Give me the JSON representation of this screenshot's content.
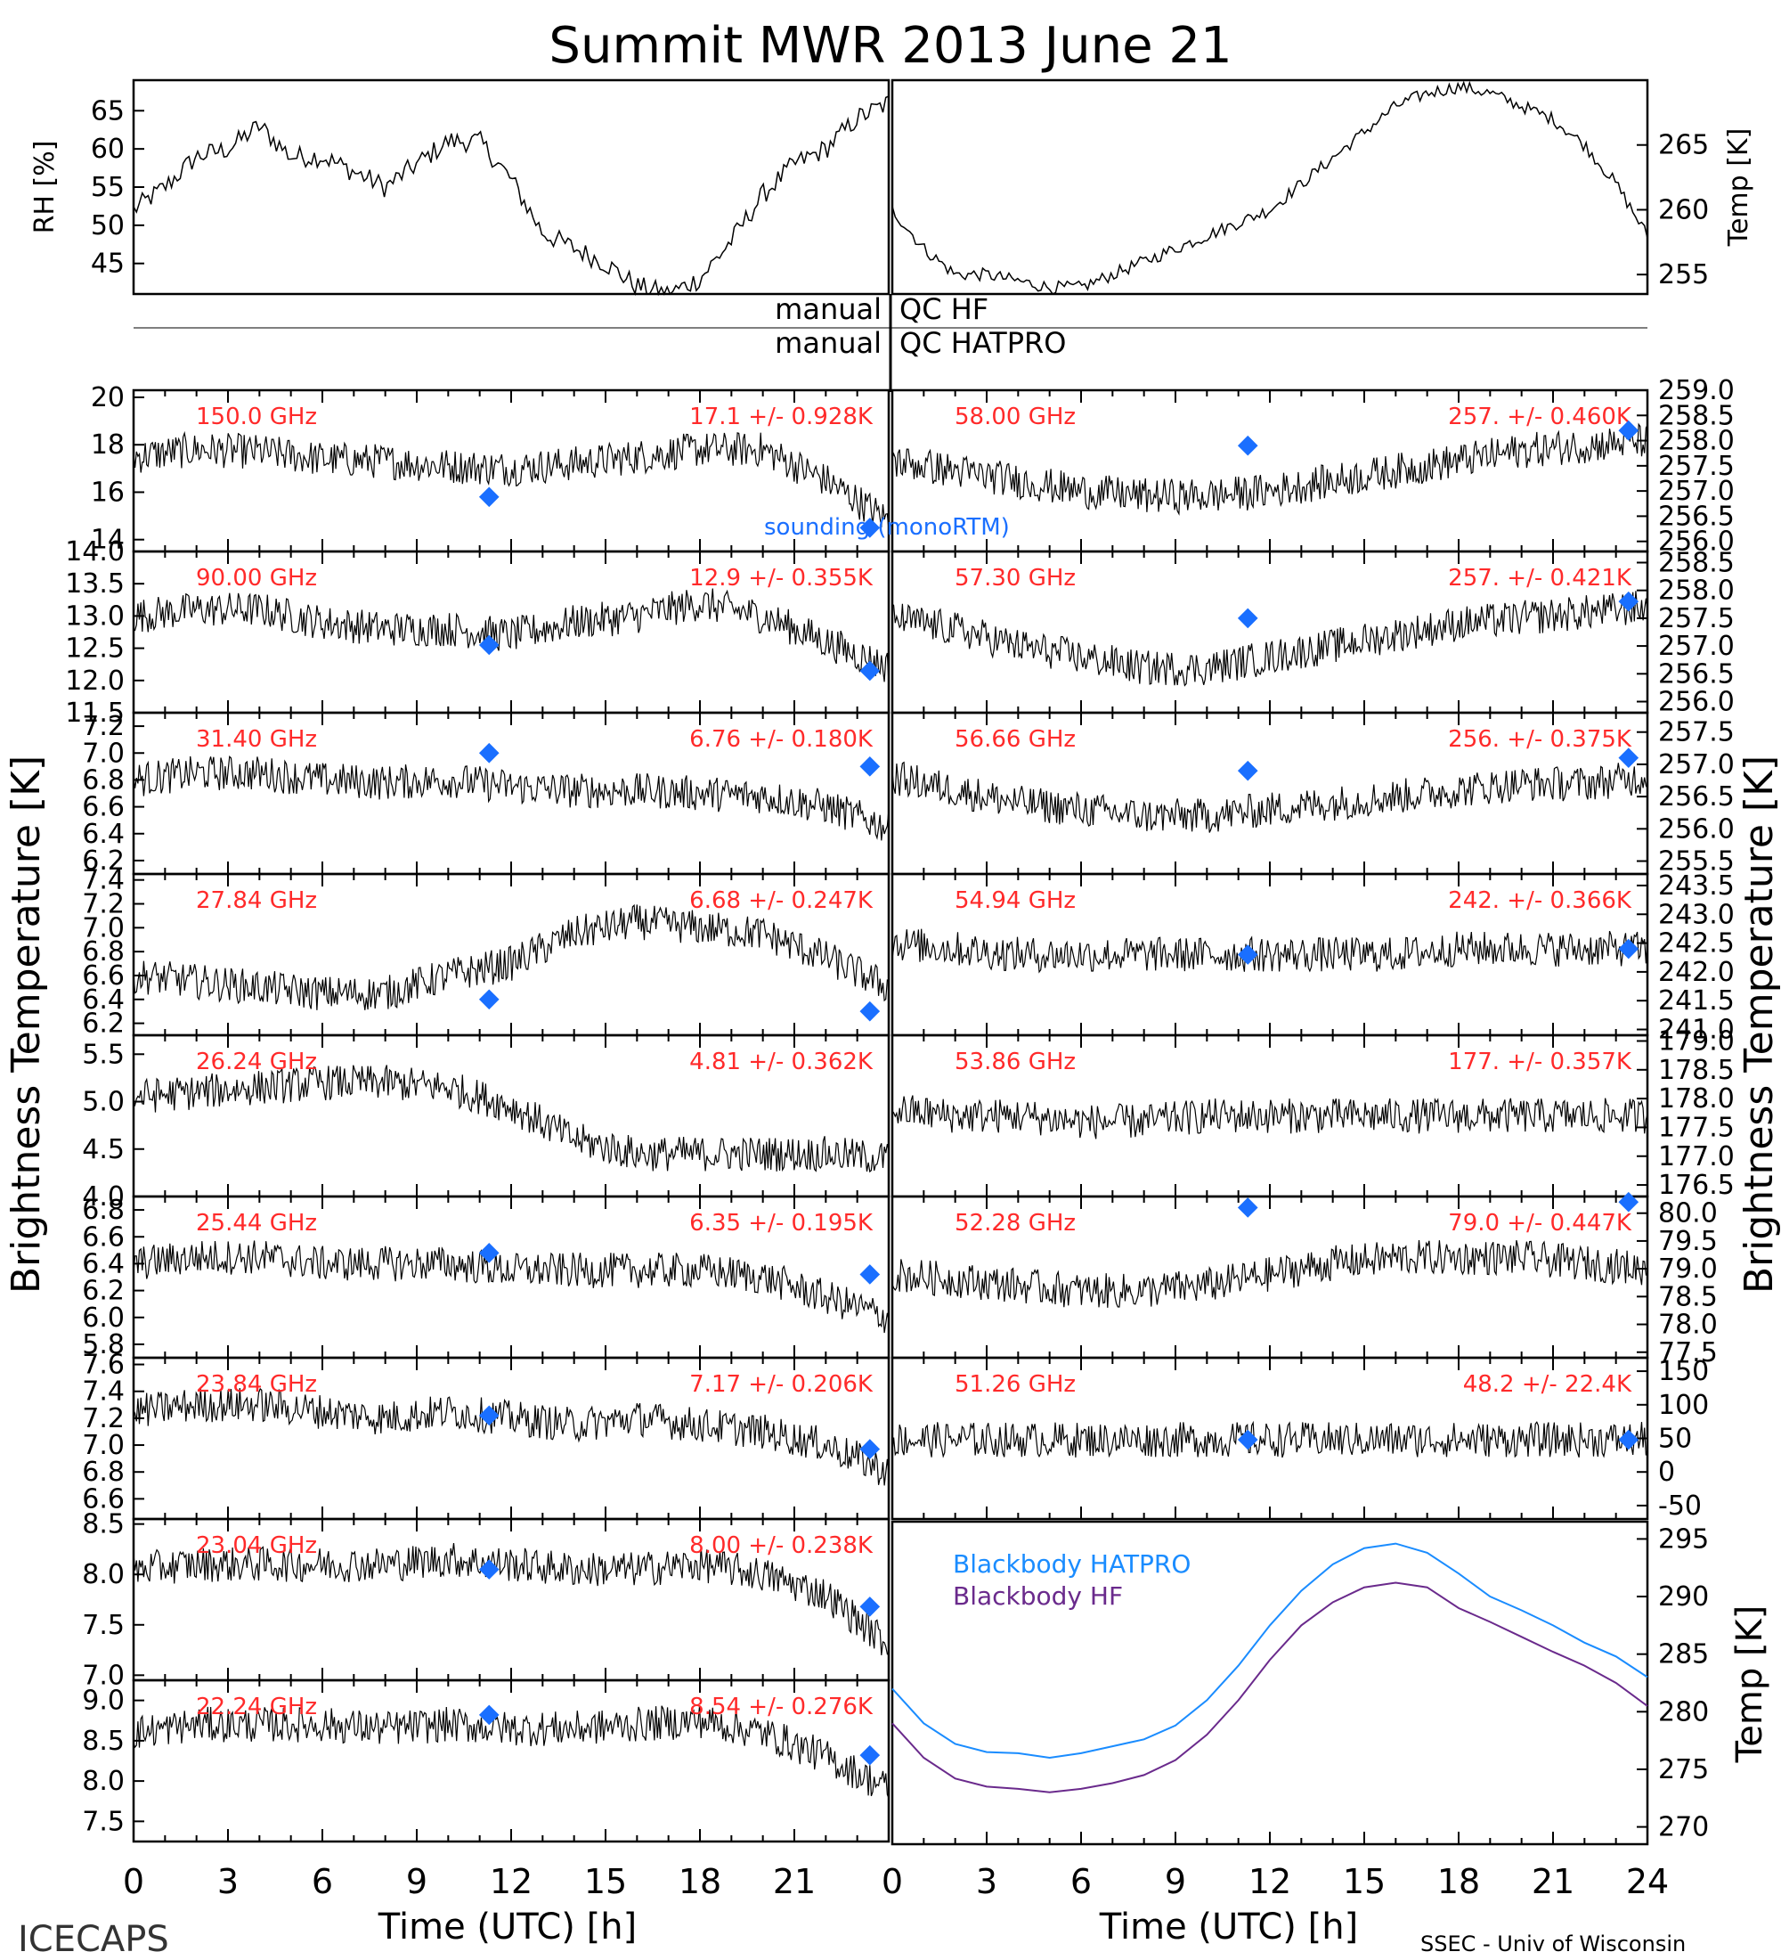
{
  "title": "Summit MWR 2013 June 21",
  "footer_left": "ICECAPS",
  "footer_right": "SSEC - Univ of Wisconsin",
  "xlabel": "Time (UTC) [h]",
  "left_xticks": [
    "0",
    "3",
    "6",
    "9",
    "12",
    "15",
    "18",
    "21",
    ""
  ],
  "right_xticks": [
    "0",
    "3",
    "6",
    "9",
    "12",
    "15",
    "18",
    "21",
    "24"
  ],
  "left_ylabel": "Brightness Temperature [K]",
  "right_ylabel": "Brightness Temperature [K]",
  "qc_labels": {
    "left1": "manual",
    "right1": "QC HF",
    "left2": "manual",
    "right2": "QC HATPRO"
  },
  "colors": {
    "data": "#000000",
    "channel_label": "#ff2a2a",
    "sounding": "#1a6fff",
    "bb_hatpro": "#1a8cff",
    "bb_hf": "#6a2a8c"
  },
  "legend_sounding": "sounding (monoRTM)",
  "chart_data": [
    {
      "type": "scatter",
      "panel": "top-left",
      "ylabel": "RH [%]",
      "yticks": [
        "45",
        "50",
        "55",
        "60",
        "65"
      ],
      "ylim": [
        41,
        69
      ],
      "x": [
        0,
        1,
        2,
        3,
        4,
        5,
        6,
        7,
        8,
        9,
        10,
        11,
        12,
        13,
        14,
        15,
        16,
        17,
        18,
        19,
        20,
        21,
        22,
        23,
        24
      ],
      "values": [
        52,
        55,
        59,
        60,
        63,
        59,
        59,
        57,
        55,
        58,
        61,
        61,
        56,
        49,
        47,
        45,
        42,
        41,
        43,
        48,
        54,
        58,
        60,
        64,
        66
      ]
    },
    {
      "type": "scatter",
      "panel": "top-right",
      "ylabel": "Temp [K]",
      "yticks": [
        "255",
        "260",
        "265"
      ],
      "ylim": [
        253.5,
        270
      ],
      "x": [
        0,
        1,
        2,
        3,
        4,
        5,
        6,
        7,
        8,
        9,
        10,
        11,
        12,
        13,
        14,
        15,
        16,
        17,
        18,
        19,
        20,
        21,
        22,
        23,
        24
      ],
      "values": [
        260,
        257,
        255,
        255,
        254.5,
        254,
        254,
        255,
        256,
        257,
        258,
        259,
        260,
        262,
        264,
        266,
        268,
        269,
        269.5,
        269,
        268,
        267,
        265,
        262,
        258
      ]
    },
    {
      "type": "scatter",
      "column": "left",
      "label": "150.0 GHz",
      "stat": "17.1 +/- 0.928K",
      "yticks": [
        "14",
        "16",
        "18",
        "20"
      ],
      "ylim": [
        13.5,
        20.3
      ],
      "x": [
        0,
        2,
        4,
        6,
        8,
        10,
        12,
        14,
        16,
        18,
        20,
        22,
        24
      ],
      "values": [
        17.5,
        17.8,
        17.7,
        17.4,
        17.3,
        17.1,
        17.0,
        17.2,
        17.5,
        17.8,
        17.8,
        16.5,
        14.8
      ],
      "sounding": [
        [
          11.3,
          15.8
        ],
        [
          23.4,
          14.5
        ]
      ]
    },
    {
      "type": "scatter",
      "column": "left",
      "label": "90.00 GHz",
      "stat": "12.9 +/- 0.355K",
      "yticks": [
        "11.5",
        "12.0",
        "12.5",
        "13.0",
        "13.5",
        "14.0"
      ],
      "ylim": [
        11.5,
        14.0
      ],
      "x": [
        0,
        2,
        4,
        6,
        8,
        10,
        12,
        14,
        16,
        18,
        20,
        22,
        24
      ],
      "values": [
        13.0,
        13.1,
        13.1,
        12.9,
        12.8,
        12.8,
        12.7,
        12.9,
        13.0,
        13.2,
        13.0,
        12.6,
        12.2
      ],
      "sounding": [
        [
          11.3,
          12.55
        ],
        [
          23.4,
          12.15
        ]
      ]
    },
    {
      "type": "scatter",
      "column": "left",
      "label": "31.40 GHz",
      "stat": "6.76 +/- 0.180K",
      "yticks": [
        "6.2",
        "6.4",
        "6.6",
        "6.8",
        "7.0",
        "7.2"
      ],
      "ylim": [
        6.1,
        7.3
      ],
      "x": [
        0,
        2,
        4,
        6,
        8,
        10,
        12,
        14,
        16,
        18,
        20,
        22,
        24
      ],
      "values": [
        6.8,
        6.85,
        6.85,
        6.8,
        6.78,
        6.8,
        6.75,
        6.72,
        6.72,
        6.7,
        6.68,
        6.6,
        6.45
      ],
      "sounding": [
        [
          11.3,
          7.0
        ],
        [
          23.4,
          6.9
        ]
      ]
    },
    {
      "type": "scatter",
      "column": "left",
      "label": "27.84 GHz",
      "stat": "6.68 +/- 0.247K",
      "yticks": [
        "6.2",
        "6.4",
        "6.6",
        "6.8",
        "7.0",
        "7.2",
        "7.4"
      ],
      "ylim": [
        6.1,
        7.45
      ],
      "x": [
        0,
        2,
        4,
        6,
        8,
        10,
        12,
        14,
        16,
        18,
        20,
        22,
        24
      ],
      "values": [
        6.6,
        6.55,
        6.5,
        6.45,
        6.45,
        6.6,
        6.7,
        6.95,
        7.05,
        7.0,
        6.95,
        6.75,
        6.5
      ],
      "sounding": [
        [
          11.3,
          6.4
        ],
        [
          23.4,
          6.3
        ]
      ]
    },
    {
      "type": "scatter",
      "column": "left",
      "label": "26.24 GHz",
      "stat": "4.81 +/- 0.362K",
      "yticks": [
        "4.0",
        "4.5",
        "5.0",
        "5.5"
      ],
      "ylim": [
        4.0,
        5.7
      ],
      "x": [
        0,
        2,
        4,
        6,
        8,
        10,
        12,
        14,
        16,
        18,
        20,
        22,
        24
      ],
      "values": [
        5.05,
        5.1,
        5.15,
        5.2,
        5.2,
        5.15,
        4.95,
        4.6,
        4.45,
        4.45,
        4.45,
        4.45,
        4.4
      ],
      "sounding": []
    },
    {
      "type": "scatter",
      "column": "left",
      "label": "25.44 GHz",
      "stat": "6.35 +/- 0.195K",
      "yticks": [
        "5.8",
        "6.0",
        "6.2",
        "6.4",
        "6.6",
        "6.8"
      ],
      "ylim": [
        5.7,
        6.9
      ],
      "x": [
        0,
        2,
        4,
        6,
        8,
        10,
        12,
        14,
        16,
        18,
        20,
        22,
        24
      ],
      "values": [
        6.4,
        6.45,
        6.45,
        6.4,
        6.4,
        6.4,
        6.35,
        6.35,
        6.35,
        6.35,
        6.3,
        6.15,
        6.0
      ],
      "sounding": [
        [
          11.3,
          6.48
        ],
        [
          23.4,
          6.32
        ]
      ]
    },
    {
      "type": "scatter",
      "column": "left",
      "label": "23.84 GHz",
      "stat": "7.17 +/- 0.206K",
      "yticks": [
        "6.6",
        "6.8",
        "7.0",
        "7.2",
        "7.4",
        "7.6"
      ],
      "ylim": [
        6.45,
        7.65
      ],
      "x": [
        0,
        2,
        4,
        6,
        8,
        10,
        12,
        14,
        16,
        18,
        20,
        22,
        24
      ],
      "values": [
        7.25,
        7.3,
        7.3,
        7.25,
        7.2,
        7.25,
        7.2,
        7.15,
        7.2,
        7.15,
        7.1,
        7.0,
        6.8
      ],
      "sounding": [
        [
          11.3,
          7.22
        ],
        [
          23.4,
          6.97
        ]
      ]
    },
    {
      "type": "scatter",
      "column": "left",
      "label": "23.04 GHz",
      "stat": "8.00 +/- 0.238K",
      "yticks": [
        "7.0",
        "7.5",
        "8.0",
        "8.5"
      ],
      "ylim": [
        6.95,
        8.55
      ],
      "x": [
        0,
        2,
        4,
        6,
        8,
        10,
        12,
        14,
        16,
        18,
        20,
        22,
        24
      ],
      "values": [
        8.05,
        8.1,
        8.1,
        8.1,
        8.1,
        8.15,
        8.1,
        8.05,
        8.05,
        8.1,
        8.0,
        7.8,
        7.3
      ],
      "sounding": [
        [
          11.3,
          8.05
        ],
        [
          23.4,
          7.68
        ]
      ]
    },
    {
      "type": "scatter",
      "column": "left",
      "label": "22.24 GHz",
      "stat": "8.54 +/- 0.276K",
      "yticks": [
        "7.5",
        "8.0",
        "8.5",
        "9.0"
      ],
      "ylim": [
        7.25,
        9.25
      ],
      "x": [
        0,
        2,
        4,
        6,
        8,
        10,
        12,
        14,
        16,
        18,
        20,
        22,
        24
      ],
      "values": [
        8.6,
        8.7,
        8.7,
        8.7,
        8.65,
        8.7,
        8.65,
        8.65,
        8.7,
        8.75,
        8.6,
        8.3,
        7.9
      ],
      "sounding": [
        [
          11.3,
          8.82
        ],
        [
          23.4,
          8.32
        ]
      ]
    },
    {
      "type": "scatter",
      "column": "right",
      "label": "58.00 GHz",
      "stat": "257. +/- 0.460K",
      "yticks": [
        "256.0",
        "256.5",
        "257.0",
        "257.5",
        "258.0",
        "258.5",
        "259.0"
      ],
      "ylim": [
        255.8,
        259.0
      ],
      "x": [
        0,
        2,
        4,
        6,
        8,
        10,
        12,
        14,
        16,
        18,
        20,
        22,
        24
      ],
      "values": [
        257.6,
        257.4,
        257.2,
        257.0,
        256.9,
        256.9,
        257.0,
        257.2,
        257.4,
        257.6,
        257.8,
        257.9,
        258.0
      ],
      "sounding": [
        [
          11.3,
          257.9
        ],
        [
          23.4,
          258.2
        ]
      ]
    },
    {
      "type": "scatter",
      "column": "right",
      "label": "57.30 GHz",
      "stat": "257. +/- 0.421K",
      "yticks": [
        "256.0",
        "256.5",
        "257.0",
        "257.5",
        "258.0",
        "258.5"
      ],
      "ylim": [
        255.8,
        258.7
      ],
      "x": [
        0,
        2,
        4,
        6,
        8,
        10,
        12,
        14,
        16,
        18,
        20,
        22,
        24
      ],
      "values": [
        257.5,
        257.3,
        257.0,
        256.8,
        256.6,
        256.6,
        256.8,
        257.0,
        257.2,
        257.4,
        257.5,
        257.6,
        257.7
      ],
      "sounding": [
        [
          11.3,
          257.5
        ],
        [
          23.4,
          257.8
        ]
      ]
    },
    {
      "type": "scatter",
      "column": "right",
      "label": "56.66 GHz",
      "stat": "256. +/- 0.375K",
      "yticks": [
        "255.5",
        "256.0",
        "256.5",
        "257.0",
        "257.5"
      ],
      "ylim": [
        255.3,
        257.8
      ],
      "x": [
        0,
        2,
        4,
        6,
        8,
        10,
        12,
        14,
        16,
        18,
        20,
        22,
        24
      ],
      "values": [
        256.8,
        256.6,
        256.4,
        256.3,
        256.2,
        256.2,
        256.3,
        256.4,
        256.5,
        256.6,
        256.7,
        256.7,
        256.8
      ],
      "sounding": [
        [
          11.3,
          256.9
        ],
        [
          23.4,
          257.1
        ]
      ]
    },
    {
      "type": "scatter",
      "column": "right",
      "label": "54.94 GHz",
      "stat": "242. +/- 0.366K",
      "yticks": [
        "241.0",
        "241.5",
        "242.0",
        "242.5",
        "243.0",
        "243.5"
      ],
      "ylim": [
        240.9,
        243.7
      ],
      "x": [
        0,
        2,
        4,
        6,
        8,
        10,
        12,
        14,
        16,
        18,
        20,
        22,
        24
      ],
      "values": [
        242.5,
        242.4,
        242.3,
        242.3,
        242.3,
        242.3,
        242.3,
        242.3,
        242.3,
        242.4,
        242.4,
        242.4,
        242.4
      ],
      "sounding": [
        [
          11.3,
          242.3
        ],
        [
          23.4,
          242.4
        ]
      ]
    },
    {
      "type": "scatter",
      "column": "right",
      "label": "53.86 GHz",
      "stat": "177. +/- 0.357K",
      "yticks": [
        "176.5",
        "177.0",
        "177.5",
        "178.0",
        "178.5",
        "179.0"
      ],
      "ylim": [
        176.3,
        179.1
      ],
      "x": [
        0,
        2,
        4,
        6,
        8,
        10,
        12,
        14,
        16,
        18,
        20,
        22,
        24
      ],
      "values": [
        177.8,
        177.7,
        177.7,
        177.6,
        177.6,
        177.7,
        177.7,
        177.7,
        177.7,
        177.7,
        177.7,
        177.7,
        177.7
      ],
      "sounding": []
    },
    {
      "type": "scatter",
      "column": "right",
      "label": "52.28 GHz",
      "stat": "79.0 +/- 0.447K",
      "yticks": [
        "77.5",
        "78.0",
        "78.5",
        "79.0",
        "79.5",
        "80.0"
      ],
      "ylim": [
        77.4,
        80.3
      ],
      "x": [
        0,
        2,
        4,
        6,
        8,
        10,
        12,
        14,
        16,
        18,
        20,
        22,
        24
      ],
      "values": [
        78.9,
        78.8,
        78.7,
        78.6,
        78.6,
        78.7,
        78.9,
        79.1,
        79.2,
        79.2,
        79.2,
        79.1,
        79.0
      ],
      "sounding": [
        [
          11.3,
          80.1
        ],
        [
          23.4,
          80.2
        ]
      ]
    },
    {
      "type": "scatter",
      "column": "right",
      "label": "51.26 GHz",
      "stat": "48.2 +/- 22.4K",
      "yticks": [
        "-50",
        "0",
        "50",
        "100",
        "150"
      ],
      "ylim": [
        -70,
        170
      ],
      "x": [
        0,
        2,
        4,
        6,
        8,
        10,
        12,
        14,
        16,
        18,
        20,
        22,
        24
      ],
      "values": [
        48,
        48,
        48,
        48,
        48,
        48,
        48,
        48,
        48,
        48,
        48,
        48,
        48
      ],
      "sounding": [
        [
          11.3,
          48
        ],
        [
          23.4,
          48
        ]
      ]
    },
    {
      "type": "line",
      "column": "right",
      "panel": "blackbody",
      "ylabel": "Temp [K]",
      "yticks": [
        "270",
        "275",
        "280",
        "285",
        "290",
        "295"
      ],
      "ylim": [
        268.5,
        296.5
      ],
      "x": [
        0,
        1,
        2,
        3,
        4,
        5,
        6,
        7,
        8,
        9,
        10,
        11,
        12,
        13,
        14,
        15,
        16,
        17,
        18,
        19,
        20,
        21,
        22,
        23,
        24
      ],
      "series": [
        {
          "name": "Blackbody HATPRO",
          "values": [
            282,
            279,
            277.2,
            276.5,
            276.4,
            276,
            276.4,
            277,
            277.6,
            278.8,
            281,
            284,
            287.5,
            290.5,
            292.8,
            294.2,
            294.6,
            293.8,
            292,
            290,
            288.8,
            287.5,
            286,
            284.8,
            283
          ]
        },
        {
          "name": "Blackbody HF",
          "values": [
            279,
            276,
            274.2,
            273.5,
            273.3,
            273,
            273.3,
            273.8,
            274.5,
            275.8,
            278,
            281,
            284.5,
            287.5,
            289.5,
            290.8,
            291.2,
            290.8,
            289,
            287.8,
            286.5,
            285.2,
            284,
            282.5,
            280.5
          ]
        }
      ]
    }
  ]
}
